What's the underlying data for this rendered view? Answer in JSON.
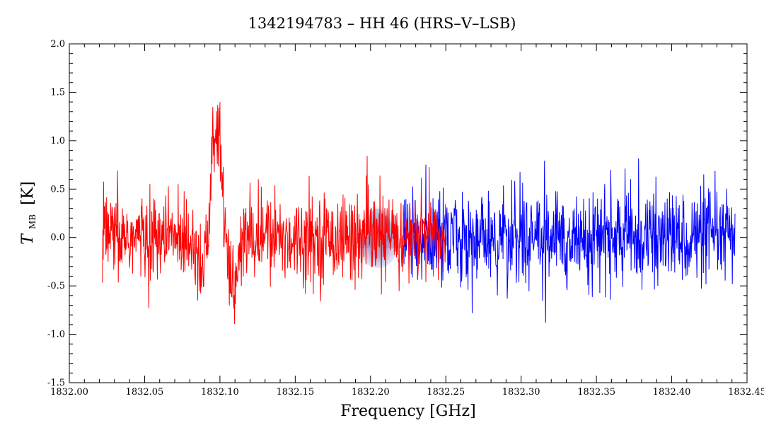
{
  "chart_data": {
    "type": "line",
    "title": "1342194783 – HH 46 (HRS–V–LSB)",
    "xlabel": "Frequency [GHz]",
    "ylabel_main": "T",
    "ylabel_sub": "MB",
    "ylabel_unit": "[K]",
    "xlim": [
      1832.0,
      1832.45
    ],
    "ylim": [
      -1.5,
      2.0
    ],
    "xticks": [
      1832.0,
      1832.05,
      1832.1,
      1832.15,
      1832.2,
      1832.25,
      1832.3,
      1832.35,
      1832.4,
      1832.45
    ],
    "xtick_labels": [
      "1832.00",
      "1832.05",
      "1832.10",
      "1832.15",
      "1832.20",
      "1832.25",
      "1832.30",
      "1832.35",
      "1832.40",
      "1832.45"
    ],
    "yticks": [
      -1.5,
      -1.0,
      -0.5,
      0.0,
      0.5,
      1.0,
      1.5,
      2.0
    ],
    "ytick_labels": [
      "-1.5",
      "-1.0",
      "-0.5",
      "0.0",
      "0.5",
      "1.0",
      "1.5",
      "2.0"
    ],
    "grid": false,
    "series": [
      {
        "color": "#ff0000",
        "x_start": 1832.022,
        "x_end": 1832.25,
        "noise_rms": 0.22,
        "line_features": [
          {
            "center": 1832.098,
            "amplitude": 1.1,
            "width": 0.0035
          },
          {
            "center": 1832.109,
            "amplitude": -0.55,
            "width": 0.003
          },
          {
            "center": 1832.089,
            "amplitude": -0.3,
            "width": 0.003
          }
        ]
      },
      {
        "color": "#0000ff",
        "x_start": 1832.222,
        "x_end": 1832.442,
        "noise_rms": 0.24,
        "line_features": []
      }
    ],
    "watermark": {
      "x": 1832.205,
      "y": 0.05
    }
  }
}
